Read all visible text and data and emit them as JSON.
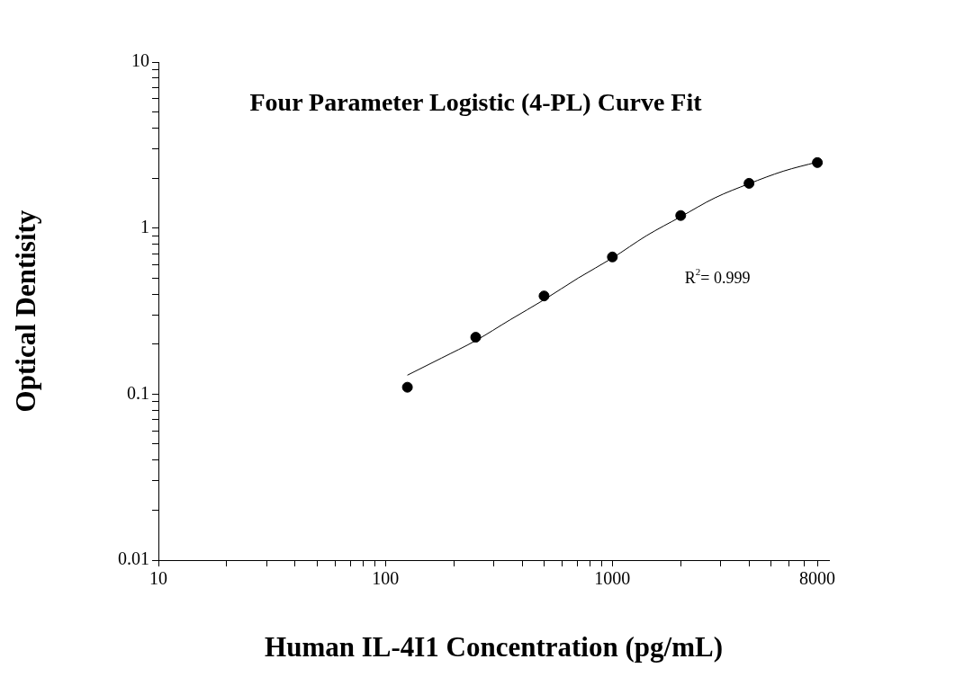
{
  "chart_data": {
    "type": "scatter",
    "title": "Four Parameter Logistic (4-PL) Curve Fit",
    "xlabel": "Human IL-4I1 Concentration (pg/mL)",
    "ylabel": "Optical Dentisity",
    "log": "xy",
    "xlim": [
      10,
      9000
    ],
    "ylim": [
      0.01,
      10
    ],
    "xticks": [
      10,
      {
        "value": 20,
        "label": null
      },
      {
        "value": 30,
        "label": null
      },
      {
        "value": 40,
        "label": null
      },
      {
        "value": 50,
        "label": null
      },
      {
        "value": 60,
        "label": null
      },
      {
        "value": 70,
        "label": null
      },
      {
        "value": 80,
        "label": null
      },
      {
        "value": 90,
        "label": null
      },
      100,
      {
        "value": 200,
        "label": null
      },
      {
        "value": 300,
        "label": null
      },
      {
        "value": 400,
        "label": null
      },
      {
        "value": 500,
        "label": null
      },
      {
        "value": 600,
        "label": null
      },
      {
        "value": 700,
        "label": null
      },
      {
        "value": 800,
        "label": null
      },
      {
        "value": 900,
        "label": null
      },
      1000,
      {
        "value": 2000,
        "label": null
      },
      {
        "value": 3000,
        "label": null
      },
      {
        "value": 4000,
        "label": null
      },
      {
        "value": 5000,
        "label": null
      },
      {
        "value": 6000,
        "label": null
      },
      {
        "value": 7000,
        "label": null
      },
      8000
    ],
    "yticks": [
      0.01,
      {
        "value": 0.02,
        "label": null
      },
      {
        "value": 0.03,
        "label": null
      },
      {
        "value": 0.04,
        "label": null
      },
      {
        "value": 0.05,
        "label": null
      },
      {
        "value": 0.06,
        "label": null
      },
      {
        "value": 0.07,
        "label": null
      },
      {
        "value": 0.08,
        "label": null
      },
      {
        "value": 0.09,
        "label": null
      },
      0.1,
      {
        "value": 0.2,
        "label": null
      },
      {
        "value": 0.3,
        "label": null
      },
      {
        "value": 0.4,
        "label": null
      },
      {
        "value": 0.5,
        "label": null
      },
      {
        "value": 0.6,
        "label": null
      },
      {
        "value": 0.7,
        "label": null
      },
      {
        "value": 0.8,
        "label": null
      },
      {
        "value": 0.9,
        "label": null
      },
      1,
      {
        "value": 2,
        "label": null
      },
      {
        "value": 3,
        "label": null
      },
      {
        "value": 4,
        "label": null
      },
      {
        "value": 5,
        "label": null
      },
      {
        "value": 6,
        "label": null
      },
      {
        "value": 7,
        "label": null
      },
      {
        "value": 8,
        "label": null
      },
      {
        "value": 9,
        "label": null
      },
      10
    ],
    "grid": false,
    "legend": false,
    "marker": "circle",
    "annotations": [
      "R$^{2}$= 0.999"
    ],
    "series": [
      {
        "color": "#000000",
        "x": [
          125,
          250,
          500,
          1000,
          2000,
          4000,
          8000
        ],
        "values": [
          0.11,
          0.22,
          0.39,
          0.67,
          1.19,
          1.86,
          2.48
        ]
      },
      {
        "type": "line",
        "color": "#000000",
        "marker": "none",
        "x": [
          125,
          177,
          250,
          354,
          500,
          707,
          1000,
          1414,
          2000,
          2828,
          4000,
          5657,
          8000
        ],
        "values": [
          0.13,
          0.165,
          0.21,
          0.28,
          0.37,
          0.5,
          0.66,
          0.9,
          1.17,
          1.52,
          1.85,
          2.2,
          2.5
        ]
      }
    ]
  }
}
